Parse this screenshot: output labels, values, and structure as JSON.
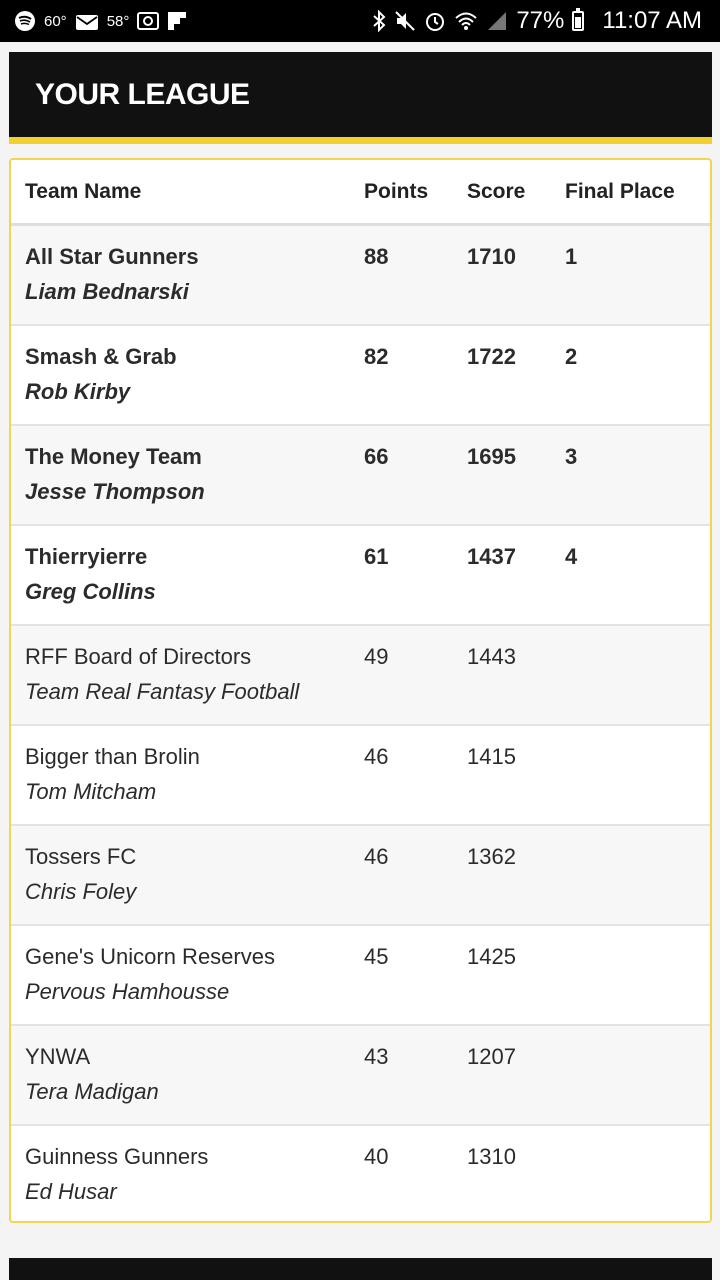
{
  "status_bar": {
    "temp1": "60°",
    "temp2": "58°",
    "battery_percent": "77%",
    "time": "11:07 AM",
    "icons_left": [
      "spotify-icon",
      "mail-icon",
      "image-icon",
      "flipboard-icon"
    ],
    "icons_right": [
      "bluetooth-icon",
      "mute-icon",
      "alarm-icon",
      "wifi-icon",
      "signal-icon",
      "battery-icon"
    ]
  },
  "header": {
    "title": "YOUR LEAGUE"
  },
  "table": {
    "columns": {
      "team_name": "Team Name",
      "points": "Points",
      "score": "Score",
      "final_place": "Final Place"
    },
    "rows": [
      {
        "team": "All Star Gunners",
        "owner": "Liam Bednarski",
        "points": "88",
        "score": "1710",
        "place": "1"
      },
      {
        "team": "Smash & Grab",
        "owner": "Rob Kirby",
        "points": "82",
        "score": "1722",
        "place": "2"
      },
      {
        "team": "The Money Team",
        "owner": "Jesse Thompson",
        "points": "66",
        "score": "1695",
        "place": "3"
      },
      {
        "team": "Thierryierre",
        "owner": "Greg Collins",
        "points": "61",
        "score": "1437",
        "place": "4"
      },
      {
        "team": "RFF Board of Directors",
        "owner": "Team Real Fantasy Football",
        "points": "49",
        "score": "1443",
        "place": ""
      },
      {
        "team": "Bigger than Brolin",
        "owner": "Tom Mitcham",
        "points": "46",
        "score": "1415",
        "place": ""
      },
      {
        "team": "Tossers FC",
        "owner": "Chris Foley",
        "points": "46",
        "score": "1362",
        "place": ""
      },
      {
        "team": "Gene's Unicorn Reserves",
        "owner": "Pervous Hamhousse",
        "points": "45",
        "score": "1425",
        "place": ""
      },
      {
        "team": "YNWA",
        "owner": "Tera Madigan",
        "points": "43",
        "score": "1207",
        "place": ""
      },
      {
        "team": "Guinness Gunners",
        "owner": "Ed Husar",
        "points": "40",
        "score": "1310",
        "place": ""
      }
    ]
  },
  "colors": {
    "accent_gold": "#f2d02d",
    "header_bg": "#111111"
  }
}
